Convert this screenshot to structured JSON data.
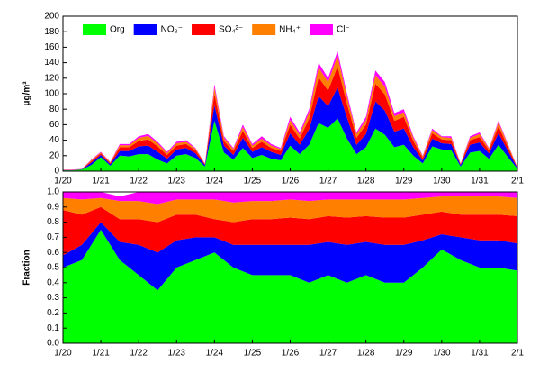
{
  "chart_data": [
    {
      "type": "area",
      "stacked": true,
      "ylabel": "μg/m³",
      "legend": "upper left",
      "x": [
        0,
        0.25,
        0.5,
        0.75,
        1,
        1.25,
        1.5,
        1.75,
        2,
        2.25,
        2.5,
        2.75,
        3,
        3.25,
        3.5,
        3.75,
        4,
        4.25,
        4.5,
        4.75,
        5,
        5.25,
        5.5,
        5.75,
        6,
        6.25,
        6.5,
        6.75,
        7,
        7.25,
        7.5,
        7.75,
        8,
        8.25,
        8.5,
        8.75,
        9,
        9.25,
        9.5,
        9.75,
        10,
        10.25,
        10.5,
        10.75,
        11,
        11.25,
        11.5,
        11.75,
        12
      ],
      "series": [
        {
          "name": "Org",
          "color": "#00ff00",
          "values": [
            1,
            1,
            2,
            8,
            18,
            7,
            20,
            19,
            22,
            22,
            15,
            10,
            20,
            22,
            17,
            6,
            65,
            24,
            15,
            30,
            17,
            21,
            16,
            14,
            33,
            22,
            34,
            62,
            56,
            68,
            42,
            22,
            31,
            55,
            47,
            31,
            34,
            20,
            10,
            32,
            28,
            27,
            6,
            24,
            26,
            16,
            34,
            18,
            3
          ]
        },
        {
          "name": "NO₃⁻",
          "color": "#0000ff",
          "values": [
            0.3,
            0.3,
            0.4,
            3,
            3,
            2,
            6,
            7,
            10,
            11,
            10,
            6,
            8,
            8,
            6,
            2,
            20,
            9,
            6,
            13,
            8,
            10,
            9,
            7,
            16,
            12,
            20,
            35,
            28,
            40,
            27,
            12,
            17,
            35,
            31,
            20,
            21,
            11,
            4,
            10,
            8,
            8,
            2,
            10,
            11,
            7,
            15,
            8,
            1
          ]
        },
        {
          "name": "SO₄²⁻",
          "color": "#ff0000",
          "values": [
            0.3,
            0.3,
            0.3,
            2,
            2,
            1.5,
            5,
            5,
            7,
            8,
            7,
            5,
            5,
            5,
            4,
            1,
            15,
            6,
            5,
            9,
            5,
            7,
            5,
            5,
            11,
            8,
            14,
            24,
            20,
            27,
            18,
            9,
            12,
            23,
            21,
            14,
            15,
            8,
            3,
            7,
            5,
            5,
            1,
            6,
            7,
            4,
            9,
            5,
            0.5
          ]
        },
        {
          "name": "NH₄⁺",
          "color": "#ff8000",
          "values": [
            0.2,
            0.2,
            0.2,
            1.2,
            1.2,
            1,
            2.5,
            2.5,
            4,
            4.5,
            4,
            2.5,
            3,
            3,
            2,
            0.6,
            8,
            4,
            2.5,
            5,
            3,
            4,
            3,
            2.5,
            6,
            5,
            8,
            13,
            11,
            14,
            9,
            5,
            6,
            11,
            10,
            6,
            6,
            4,
            2,
            4,
            3,
            3,
            0.6,
            3,
            4,
            2,
            5,
            3,
            0.3
          ]
        },
        {
          "name": "Cl⁻",
          "color": "#ff00ff",
          "values": [
            0.2,
            0.2,
            0.1,
            0.8,
            0.8,
            0.5,
            1.5,
            1.5,
            2,
            2.5,
            2,
            1.5,
            2,
            2,
            1,
            0.4,
            4,
            2,
            1.5,
            3,
            2,
            3,
            2,
            1.5,
            4,
            3,
            4,
            6,
            5,
            6,
            4,
            2,
            4,
            6,
            6,
            4,
            4,
            2,
            1,
            2,
            1,
            2,
            0.4,
            2,
            2,
            1,
            2,
            1,
            0.2
          ]
        }
      ],
      "xlim": [
        0,
        12
      ],
      "xticks": [
        {
          "value": 0,
          "label": "1/20"
        },
        {
          "value": 1,
          "label": "1/21"
        },
        {
          "value": 2,
          "label": "1/22"
        },
        {
          "value": 3,
          "label": "1/23"
        },
        {
          "value": 4,
          "label": "1/24"
        },
        {
          "value": 5,
          "label": "1/25"
        },
        {
          "value": 6,
          "label": "1/26"
        },
        {
          "value": 7,
          "label": "1/27"
        },
        {
          "value": 8,
          "label": "1/28"
        },
        {
          "value": 9,
          "label": "1/29"
        },
        {
          "value": 10,
          "label": "1/30"
        },
        {
          "value": 11,
          "label": "1/31"
        },
        {
          "value": 12,
          "label": "2/1"
        }
      ],
      "ylim": [
        0,
        200
      ],
      "yticks": [
        0,
        20,
        40,
        60,
        80,
        100,
        120,
        140,
        160,
        180,
        200
      ]
    },
    {
      "type": "area",
      "stacked": true,
      "ylabel": "Fraction",
      "x": [
        0,
        0.5,
        1,
        1.5,
        2,
        2.5,
        3,
        3.5,
        4,
        4.5,
        5,
        5.5,
        6,
        6.5,
        7,
        7.5,
        8,
        8.5,
        9,
        9.5,
        10,
        10.5,
        11,
        11.5,
        12
      ],
      "series": [
        {
          "name": "Org",
          "color": "#00ff00",
          "values": [
            0.5,
            0.55,
            0.75,
            0.55,
            0.45,
            0.35,
            0.5,
            0.55,
            0.6,
            0.5,
            0.45,
            0.45,
            0.45,
            0.4,
            0.45,
            0.4,
            0.45,
            0.4,
            0.4,
            0.5,
            0.62,
            0.55,
            0.5,
            0.5,
            0.48
          ]
        },
        {
          "name": "NO₃⁻",
          "color": "#0000ff",
          "values": [
            0.08,
            0.1,
            0.05,
            0.12,
            0.2,
            0.25,
            0.18,
            0.15,
            0.1,
            0.15,
            0.2,
            0.2,
            0.2,
            0.25,
            0.22,
            0.25,
            0.22,
            0.25,
            0.25,
            0.18,
            0.1,
            0.15,
            0.18,
            0.18,
            0.18
          ]
        },
        {
          "name": "SO₄²⁻",
          "color": "#ff0000",
          "values": [
            0.3,
            0.2,
            0.1,
            0.15,
            0.17,
            0.2,
            0.17,
            0.15,
            0.12,
            0.15,
            0.17,
            0.17,
            0.18,
            0.17,
            0.17,
            0.18,
            0.17,
            0.18,
            0.18,
            0.17,
            0.15,
            0.15,
            0.17,
            0.17,
            0.18
          ]
        },
        {
          "name": "NH₄⁺",
          "color": "#ff8000",
          "values": [
            0.08,
            0.1,
            0.06,
            0.12,
            0.12,
            0.12,
            0.1,
            0.1,
            0.13,
            0.13,
            0.12,
            0.12,
            0.12,
            0.12,
            0.11,
            0.12,
            0.11,
            0.12,
            0.12,
            0.11,
            0.1,
            0.12,
            0.12,
            0.12,
            0.12
          ]
        },
        {
          "name": "Cl⁻",
          "color": "#ff00ff",
          "values": [
            0.04,
            0.05,
            0.04,
            0.03,
            0.06,
            0.08,
            0.05,
            0.05,
            0.05,
            0.07,
            0.06,
            0.06,
            0.05,
            0.06,
            0.05,
            0.05,
            0.05,
            0.05,
            0.05,
            0.04,
            0.03,
            0.03,
            0.03,
            0.03,
            0.04
          ]
        }
      ],
      "xlim": [
        0,
        12
      ],
      "xticks": [
        {
          "value": 0,
          "label": "1/20"
        },
        {
          "value": 1,
          "label": "1/21"
        },
        {
          "value": 2,
          "label": "1/22"
        },
        {
          "value": 3,
          "label": "1/23"
        },
        {
          "value": 4,
          "label": "1/24"
        },
        {
          "value": 5,
          "label": "1/25"
        },
        {
          "value": 6,
          "label": "1/26"
        },
        {
          "value": 7,
          "label": "1/27"
        },
        {
          "value": 8,
          "label": "1/28"
        },
        {
          "value": 9,
          "label": "1/29"
        },
        {
          "value": 10,
          "label": "1/30"
        },
        {
          "value": 11,
          "label": "1/31"
        },
        {
          "value": 12,
          "label": "2/1"
        }
      ],
      "ylim": [
        0,
        1
      ],
      "yticks": [
        {
          "value": 0,
          "label": "0.0"
        },
        0.1,
        0.2,
        0.3,
        0.4,
        0.5,
        0.6,
        0.7,
        0.8,
        0.9,
        {
          "value": 1,
          "label": "1.0"
        }
      ]
    }
  ]
}
